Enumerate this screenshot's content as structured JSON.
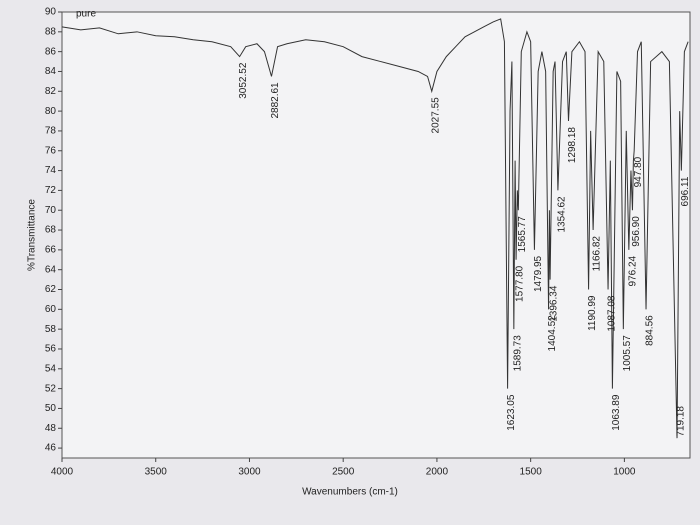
{
  "chart_data": {
    "type": "line",
    "title": "pure",
    "x_label": "Wavenumbers (cm-1)",
    "y_label": "%Transmittance",
    "xlim": [
      4000,
      650
    ],
    "xticks": [
      4000,
      3500,
      3000,
      2500,
      2000,
      1500,
      1000
    ],
    "ylim": [
      45,
      90
    ],
    "yticks": [
      46,
      48,
      50,
      52,
      54,
      56,
      58,
      60,
      62,
      64,
      66,
      68,
      70,
      72,
      74,
      76,
      78,
      80,
      82,
      84,
      86,
      88,
      90
    ],
    "grid": false,
    "x": [
      4000,
      3900,
      3800,
      3700,
      3600,
      3500,
      3400,
      3300,
      3200,
      3100,
      3052.52,
      3020,
      2960,
      2920,
      2882.61,
      2850,
      2800,
      2700,
      2600,
      2500,
      2400,
      2300,
      2200,
      2100,
      2050,
      2027.55,
      2000,
      1950,
      1900,
      1850,
      1800,
      1750,
      1700,
      1660,
      1640,
      1623.05,
      1610,
      1600,
      1589.73,
      1583,
      1577.8,
      1571,
      1565.77,
      1550,
      1520,
      1500,
      1479.95,
      1460,
      1440,
      1420,
      1404.52,
      1400,
      1396.34,
      1380,
      1370,
      1354.62,
      1330,
      1310,
      1298.18,
      1280,
      1240,
      1210,
      1190.99,
      1180,
      1166.82,
      1140,
      1110,
      1087.08,
      1075,
      1063.89,
      1040,
      1020,
      1005.57,
      990,
      976.24,
      965,
      956.9,
      952,
      947.8,
      930,
      910,
      884.56,
      860,
      800,
      760,
      719.18,
      705,
      696.11,
      680,
      660
    ],
    "series": [
      {
        "name": "pure",
        "color": "#333333",
        "values": [
          88.5,
          88.2,
          88.4,
          87.8,
          88,
          87.6,
          87.5,
          87.2,
          87,
          86.5,
          85.5,
          86.5,
          86.8,
          86,
          83.5,
          86.5,
          86.8,
          87.2,
          87,
          86.5,
          85.5,
          85,
          84.5,
          84,
          83.5,
          82,
          84,
          85.5,
          86.5,
          87.5,
          88,
          88.5,
          89,
          89.3,
          87,
          52,
          80,
          85,
          58,
          75,
          65,
          72,
          70,
          86,
          88,
          87,
          66,
          84,
          86,
          84,
          60,
          70,
          63,
          84,
          85,
          72,
          85,
          86,
          79,
          86,
          87,
          86,
          62,
          78,
          68,
          86,
          85,
          62,
          75,
          52,
          84,
          83,
          58,
          78,
          66,
          74,
          70,
          75,
          76,
          86,
          87,
          60,
          85,
          86,
          85,
          47,
          80,
          74,
          86,
          87
        ]
      }
    ],
    "peaks": [
      3052.52,
      2882.61,
      2027.55,
      1623.05,
      1589.73,
      {
        "value": 1577.8,
        "label": "1577.80"
      },
      1565.77,
      1479.95,
      1404.52,
      1396.34,
      1354.62,
      1298.18,
      1190.99,
      1166.82,
      {
        "value": 1087.08,
        "label": "1087.08"
      },
      1063.89,
      1005.57,
      976.24,
      {
        "value": 956.9,
        "label": "956.90"
      },
      {
        "value": 947.8,
        "label": "947.80"
      },
      884.56,
      719.18,
      696.11
    ]
  }
}
